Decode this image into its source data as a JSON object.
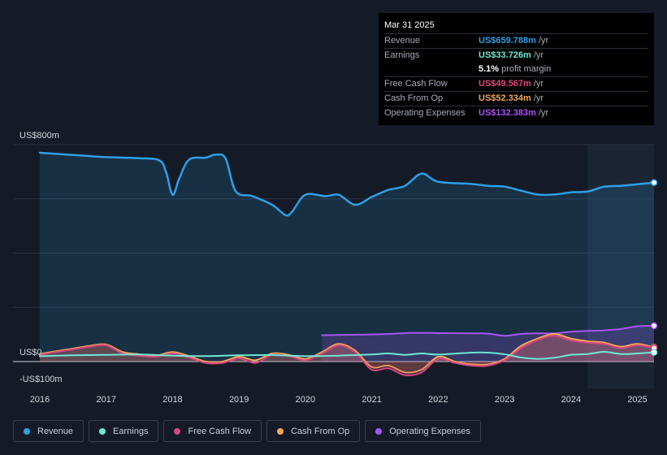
{
  "tooltip": {
    "date": "Mar 31 2025",
    "rows": [
      {
        "label": "Revenue",
        "value": "US$659.788m",
        "unit": "/yr",
        "color": "#2e9fe8"
      },
      {
        "label": "Earnings",
        "value": "US$33.726m",
        "unit": "/yr",
        "color": "#6ee7d4"
      },
      {
        "label": "",
        "value": "5.1%",
        "unit": "profit margin",
        "color": "#ffffff"
      },
      {
        "label": "Free Cash Flow",
        "value": "US$49.567m",
        "unit": "/yr",
        "color": "#e0457b"
      },
      {
        "label": "Cash From Op",
        "value": "US$52.334m",
        "unit": "/yr",
        "color": "#f0a85a"
      },
      {
        "label": "Operating Expenses",
        "value": "US$132.383m",
        "unit": "/yr",
        "color": "#a855f7"
      }
    ]
  },
  "legend": [
    {
      "label": "Revenue",
      "color": "#2e9fe8"
    },
    {
      "label": "Earnings",
      "color": "#6ee7d4"
    },
    {
      "label": "Free Cash Flow",
      "color": "#d9467f"
    },
    {
      "label": "Cash From Op",
      "color": "#f0a85a"
    },
    {
      "label": "Operating Expenses",
      "color": "#a855f7"
    }
  ],
  "chart_data": {
    "type": "line",
    "y_unit": "US$ millions",
    "ylim": [
      -100,
      800
    ],
    "y_ticks_labeled": [
      {
        "value": 800,
        "label": "US$800m"
      },
      {
        "value": 0,
        "label": "US$0"
      },
      {
        "value": -100,
        "label": "-US$100m"
      }
    ],
    "y_gridlines": [
      800,
      600,
      400,
      200,
      0
    ],
    "x_ticks": [
      "2016",
      "2017",
      "2018",
      "2019",
      "2020",
      "2021",
      "2022",
      "2023",
      "2024",
      "2025"
    ],
    "xlim": [
      2015.6,
      2025.25
    ],
    "highlight_region": [
      2024.25,
      2025.25
    ],
    "series": [
      {
        "name": "Revenue",
        "color": "#2e9fe8",
        "area": true,
        "points": [
          [
            2016.0,
            770
          ],
          [
            2016.5,
            762
          ],
          [
            2017.0,
            754
          ],
          [
            2017.5,
            750
          ],
          [
            2017.8,
            742
          ],
          [
            2017.9,
            700
          ],
          [
            2018.0,
            615
          ],
          [
            2018.1,
            675
          ],
          [
            2018.25,
            745
          ],
          [
            2018.5,
            752
          ],
          [
            2018.65,
            763
          ],
          [
            2018.8,
            748
          ],
          [
            2018.95,
            628
          ],
          [
            2019.2,
            610
          ],
          [
            2019.5,
            578
          ],
          [
            2019.7,
            540
          ],
          [
            2019.8,
            553
          ],
          [
            2020.0,
            615
          ],
          [
            2020.3,
            610
          ],
          [
            2020.5,
            615
          ],
          [
            2020.75,
            578
          ],
          [
            2021.0,
            607
          ],
          [
            2021.25,
            633
          ],
          [
            2021.5,
            648
          ],
          [
            2021.75,
            693
          ],
          [
            2022.0,
            663
          ],
          [
            2022.5,
            655
          ],
          [
            2022.75,
            648
          ],
          [
            2023.0,
            645
          ],
          [
            2023.25,
            630
          ],
          [
            2023.5,
            616
          ],
          [
            2023.75,
            616
          ],
          [
            2024.0,
            624
          ],
          [
            2024.25,
            627
          ],
          [
            2024.5,
            645
          ],
          [
            2024.75,
            648
          ],
          [
            2025.0,
            654
          ],
          [
            2025.25,
            660
          ]
        ]
      },
      {
        "name": "Earnings",
        "color": "#6ee7d4",
        "area": false,
        "points": [
          [
            2016.0,
            20
          ],
          [
            2016.5,
            23
          ],
          [
            2017.0,
            25
          ],
          [
            2017.5,
            26
          ],
          [
            2018.0,
            22
          ],
          [
            2018.5,
            20
          ],
          [
            2019.0,
            23
          ],
          [
            2019.5,
            24
          ],
          [
            2020.0,
            20
          ],
          [
            2020.5,
            22
          ],
          [
            2021.0,
            26
          ],
          [
            2021.25,
            30
          ],
          [
            2021.5,
            25
          ],
          [
            2021.75,
            30
          ],
          [
            2022.0,
            26
          ],
          [
            2022.5,
            33
          ],
          [
            2022.75,
            33
          ],
          [
            2023.0,
            27
          ],
          [
            2023.25,
            15
          ],
          [
            2023.5,
            10
          ],
          [
            2023.75,
            14
          ],
          [
            2024.0,
            25
          ],
          [
            2024.25,
            28
          ],
          [
            2024.5,
            36
          ],
          [
            2024.75,
            28
          ],
          [
            2025.0,
            30
          ],
          [
            2025.25,
            34
          ]
        ]
      },
      {
        "name": "Free Cash Flow",
        "color": "#d9467f",
        "area": true,
        "points": [
          [
            2016.0,
            25
          ],
          [
            2016.5,
            45
          ],
          [
            2016.75,
            55
          ],
          [
            2017.0,
            60
          ],
          [
            2017.25,
            30
          ],
          [
            2017.5,
            22
          ],
          [
            2017.75,
            18
          ],
          [
            2018.0,
            30
          ],
          [
            2018.25,
            15
          ],
          [
            2018.5,
            -5
          ],
          [
            2018.75,
            -5
          ],
          [
            2019.0,
            12
          ],
          [
            2019.25,
            -5
          ],
          [
            2019.5,
            25
          ],
          [
            2019.75,
            20
          ],
          [
            2020.0,
            5
          ],
          [
            2020.25,
            30
          ],
          [
            2020.5,
            60
          ],
          [
            2020.75,
            35
          ],
          [
            2021.0,
            -30
          ],
          [
            2021.25,
            -25
          ],
          [
            2021.5,
            -50
          ],
          [
            2021.75,
            -40
          ],
          [
            2022.0,
            10
          ],
          [
            2022.25,
            -5
          ],
          [
            2022.5,
            -15
          ],
          [
            2022.75,
            -15
          ],
          [
            2023.0,
            5
          ],
          [
            2023.25,
            50
          ],
          [
            2023.5,
            80
          ],
          [
            2023.75,
            95
          ],
          [
            2024.0,
            78
          ],
          [
            2024.25,
            70
          ],
          [
            2024.5,
            65
          ],
          [
            2024.75,
            50
          ],
          [
            2025.0,
            60
          ],
          [
            2025.25,
            50
          ]
        ]
      },
      {
        "name": "Cash From Op",
        "color": "#f0a85a",
        "area": true,
        "points": [
          [
            2016.0,
            28
          ],
          [
            2016.5,
            48
          ],
          [
            2016.75,
            58
          ],
          [
            2017.0,
            63
          ],
          [
            2017.25,
            35
          ],
          [
            2017.5,
            27
          ],
          [
            2017.75,
            22
          ],
          [
            2018.0,
            35
          ],
          [
            2018.25,
            20
          ],
          [
            2018.5,
            0
          ],
          [
            2018.75,
            0
          ],
          [
            2019.0,
            18
          ],
          [
            2019.25,
            5
          ],
          [
            2019.5,
            30
          ],
          [
            2019.75,
            25
          ],
          [
            2020.0,
            10
          ],
          [
            2020.25,
            35
          ],
          [
            2020.5,
            65
          ],
          [
            2020.75,
            40
          ],
          [
            2021.0,
            -20
          ],
          [
            2021.25,
            -15
          ],
          [
            2021.5,
            -40
          ],
          [
            2021.75,
            -30
          ],
          [
            2022.0,
            18
          ],
          [
            2022.25,
            0
          ],
          [
            2022.5,
            -10
          ],
          [
            2022.75,
            -10
          ],
          [
            2023.0,
            10
          ],
          [
            2023.25,
            58
          ],
          [
            2023.5,
            85
          ],
          [
            2023.75,
            102
          ],
          [
            2024.0,
            85
          ],
          [
            2024.25,
            75
          ],
          [
            2024.5,
            70
          ],
          [
            2024.75,
            55
          ],
          [
            2025.0,
            65
          ],
          [
            2025.25,
            52
          ]
        ]
      },
      {
        "name": "Operating Expenses",
        "color": "#a855f7",
        "area": true,
        "points": [
          [
            2020.25,
            97
          ],
          [
            2020.5,
            98
          ],
          [
            2021.0,
            100
          ],
          [
            2021.25,
            102
          ],
          [
            2021.5,
            105
          ],
          [
            2021.75,
            106
          ],
          [
            2022.0,
            105
          ],
          [
            2022.5,
            104
          ],
          [
            2022.75,
            103
          ],
          [
            2023.0,
            95
          ],
          [
            2023.25,
            102
          ],
          [
            2023.5,
            104
          ],
          [
            2023.75,
            104
          ],
          [
            2024.0,
            110
          ],
          [
            2024.25,
            113
          ],
          [
            2024.5,
            115
          ],
          [
            2024.75,
            120
          ],
          [
            2025.0,
            130
          ],
          [
            2025.25,
            132
          ]
        ]
      }
    ]
  }
}
